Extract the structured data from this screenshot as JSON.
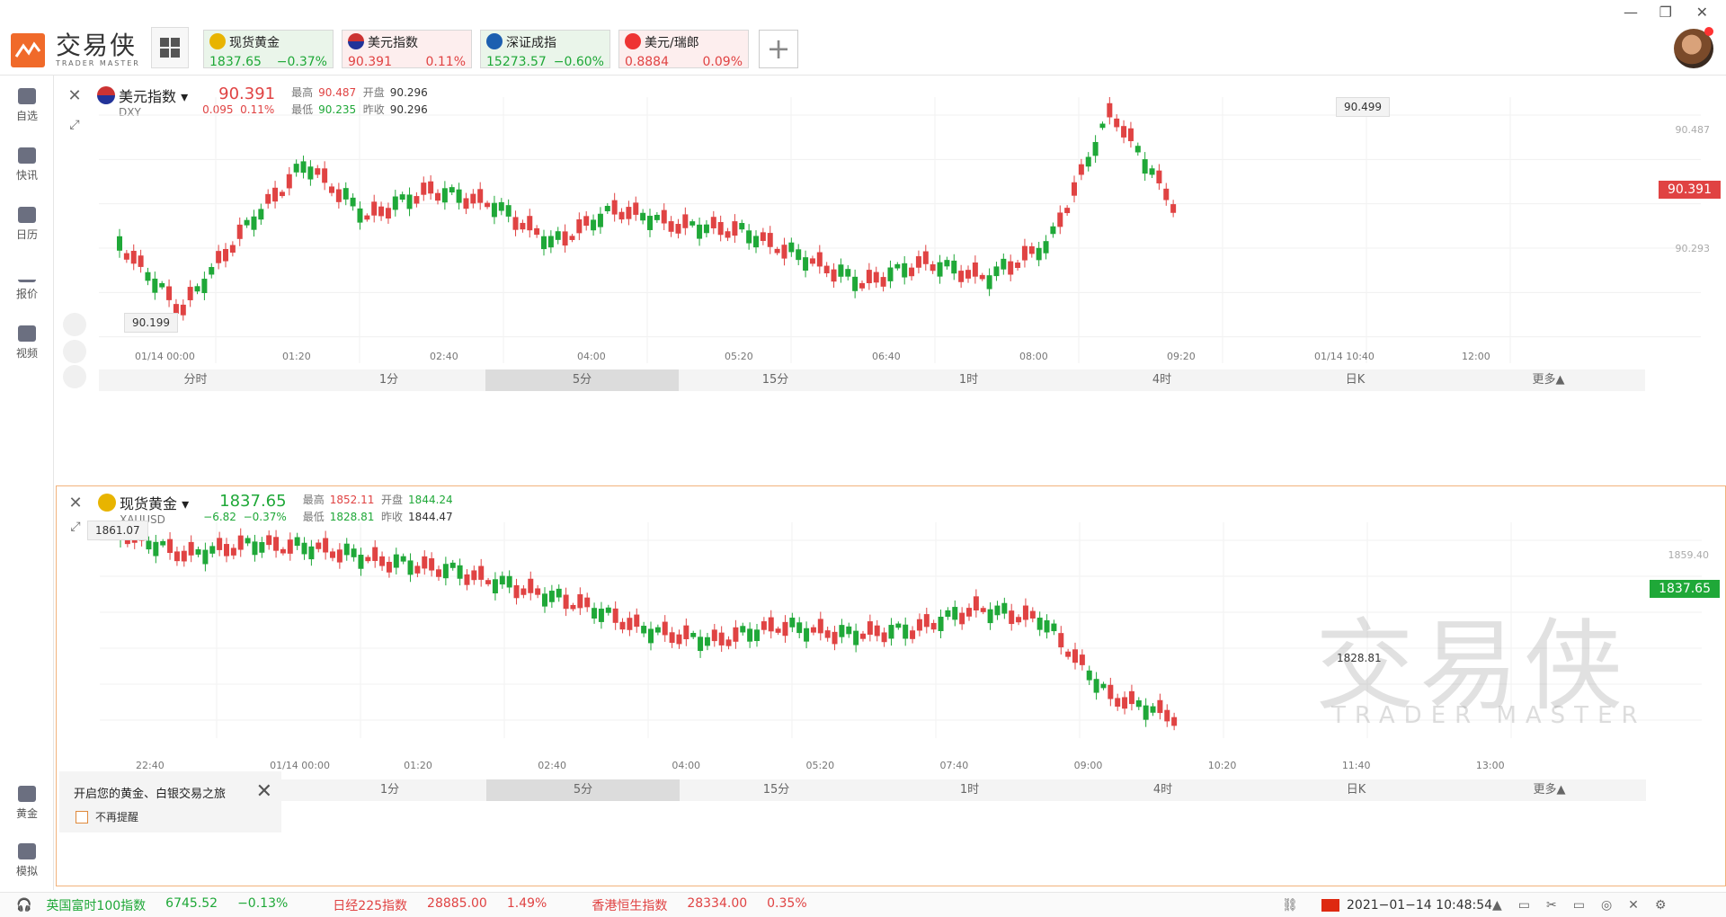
{
  "app": {
    "logo_cn": "交易侠",
    "logo_en": "TRADER MASTER"
  },
  "tickers": [
    {
      "name": "现货黄金",
      "price": "1837.65",
      "change": "−0.37%",
      "dir": "down"
    },
    {
      "name": "美元指数",
      "price": "90.391",
      "change": "0.11%",
      "dir": "up"
    },
    {
      "name": "深证成指",
      "price": "15273.57",
      "change": "−0.60%",
      "dir": "down"
    },
    {
      "name": "美元/瑞郎",
      "price": "0.8884",
      "change": "0.09%",
      "dir": "up"
    }
  ],
  "sidebar": {
    "items": [
      {
        "label": "自选",
        "icon": "bookmark-icon"
      },
      {
        "label": "快讯",
        "icon": "news-icon"
      },
      {
        "label": "日历",
        "icon": "calendar-icon"
      },
      {
        "label": "报价",
        "icon": "quote-icon"
      },
      {
        "label": "视频",
        "icon": "video-icon"
      },
      {
        "label": "黄金",
        "icon": "gold-icon"
      },
      {
        "label": "模拟",
        "icon": "wallet-icon"
      }
    ]
  },
  "panel1": {
    "title": "美元指数",
    "symbol": "DXY",
    "price": "90.391",
    "chg_abs": "0.095",
    "chg_pct": "0.11%",
    "high_label": "最高",
    "high": "90.487",
    "open_label": "开盘",
    "open": "90.296",
    "low_label": "最低",
    "low": "90.235",
    "prev_label": "昨收",
    "prev": "90.296",
    "y_labels": [
      "90.487",
      "90.293"
    ],
    "current_tag": "90.391",
    "max_callout": "90.499",
    "min_callout": "90.199",
    "x_labels": [
      "01/14 00:00",
      "01:20",
      "02:40",
      "04:00",
      "05:20",
      "06:40",
      "08:00",
      "09:20",
      "01/14 10:40",
      "12:00"
    ]
  },
  "panel2": {
    "title": "现货黄金",
    "symbol": "XAUUSD",
    "price": "1837.65",
    "chg_abs": "−6.82",
    "chg_pct": "−0.37%",
    "high_label": "最高",
    "high": "1852.11",
    "open_label": "开盘",
    "open": "1844.24",
    "low_label": "最低",
    "low": "1828.81",
    "prev_label": "昨收",
    "prev": "1844.47",
    "y_labels": [
      "1859.40"
    ],
    "current_tag": "1837.65",
    "max_callout": "1861.07",
    "min_callout": "1828.81",
    "x_labels": [
      "22:40",
      "01/14 00:00",
      "01:20",
      "02:40",
      "04:00",
      "05:20",
      "07:40",
      "09:00",
      "10:20",
      "11:40",
      "13:00"
    ],
    "watermark_cn": "交易侠",
    "watermark_en": "TRADER MASTER"
  },
  "periods": [
    "分时",
    "1分",
    "5分",
    "15分",
    "1时",
    "4时",
    "日K",
    "更多▲"
  ],
  "active_period": "5分",
  "promo": {
    "title": "开启您的黄金、白银交易之旅",
    "checkbox_label": "不再提醒"
  },
  "bottom": {
    "indices": [
      {
        "name": "英国富时100指数",
        "value": "6745.52",
        "change": "−0.13%"
      },
      {
        "name": "日经225指数",
        "value": "28885.00",
        "change": "1.49%"
      },
      {
        "name": "香港恒生指数",
        "value": "28334.00",
        "change": "0.35%"
      }
    ],
    "datetime": "2021−01−14 10:48:54"
  },
  "colors": {
    "up": "#e04343",
    "down": "#1fa838",
    "accent": "#f06a2a"
  }
}
